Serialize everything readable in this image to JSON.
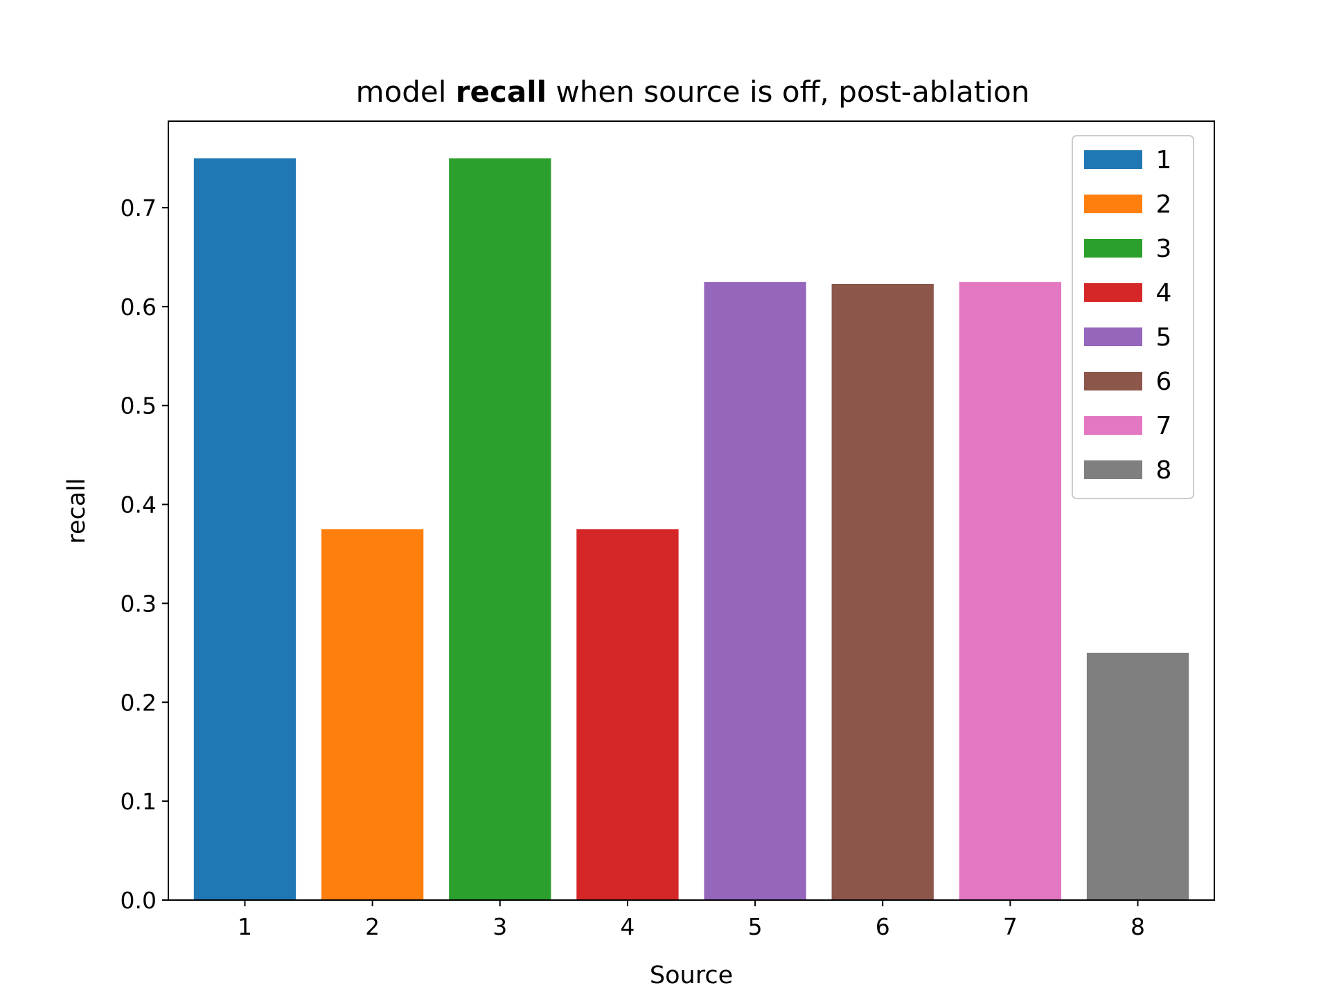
{
  "chart_data": {
    "type": "bar",
    "title": {
      "prefix": "model ",
      "bold": "recall",
      "suffix": " when source is off, post-ablation"
    },
    "xlabel": "Source",
    "ylabel": "recall",
    "categories": [
      "1",
      "2",
      "3",
      "4",
      "5",
      "6",
      "7",
      "8"
    ],
    "values": [
      0.75,
      0.375,
      0.75,
      0.375,
      0.625,
      0.623,
      0.625,
      0.25
    ],
    "colors": [
      "#1f77b4",
      "#ff7f0e",
      "#2ca02c",
      "#d62728",
      "#9467bd",
      "#8c564b",
      "#e377c2",
      "#7f7f7f"
    ],
    "ylim": [
      0,
      0.7875
    ],
    "yticks": [
      0.0,
      0.1,
      0.2,
      0.3,
      0.4,
      0.5,
      0.6,
      0.7
    ],
    "ytick_labels": [
      "0.0",
      "0.1",
      "0.2",
      "0.3",
      "0.4",
      "0.5",
      "0.6",
      "0.7"
    ],
    "grid": false,
    "legend": {
      "placement": "top-right",
      "entries": [
        "1",
        "2",
        "3",
        "4",
        "5",
        "6",
        "7",
        "8"
      ]
    }
  }
}
